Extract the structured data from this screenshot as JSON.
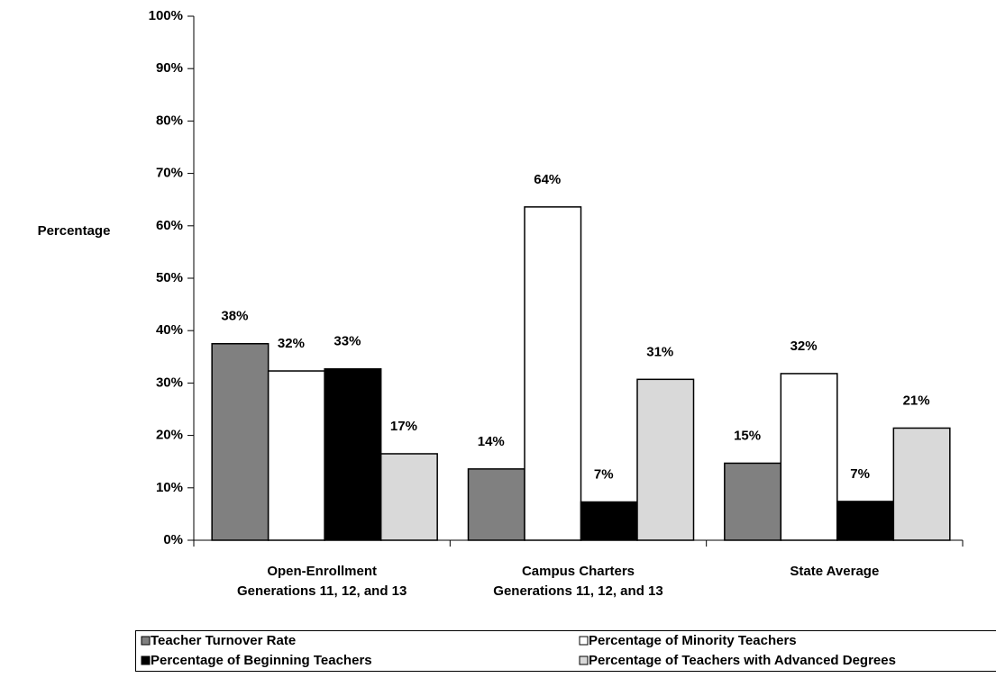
{
  "chart_data": {
    "type": "bar",
    "y_label": "Percentage",
    "categories": [
      "Open-Enrollment\nGenerations 11, 12, and 13",
      "Campus Charters\nGenerations 11, 12, and 13",
      "State Average"
    ],
    "series": [
      {
        "name": "Teacher Turnover Rate",
        "color": "#808080",
        "values": [
          37.5,
          13.6,
          14.7
        ],
        "value_labels": [
          "38%",
          "14%",
          "15%"
        ]
      },
      {
        "name": "Percentage of Minority Teachers",
        "color": "#ffffff",
        "values": [
          32.3,
          63.6,
          31.8
        ],
        "value_labels": [
          "32%",
          "64%",
          "32%"
        ]
      },
      {
        "name": "Percentage of Beginning Teachers",
        "color": "#000000",
        "values": [
          32.7,
          7.3,
          7.4
        ],
        "value_labels": [
          "33%",
          "7%",
          "7%"
        ]
      },
      {
        "name": "Percentage of Teachers with Advanced Degrees",
        "color": "#d9d9d9",
        "values": [
          16.5,
          30.7,
          21.4
        ],
        "value_labels": [
          "17%",
          "31%",
          "21%"
        ]
      }
    ],
    "ylim": [
      0,
      100
    ],
    "yticks": [
      {
        "value": 0,
        "label": "0%"
      },
      {
        "value": 10,
        "label": "10%"
      },
      {
        "value": 20,
        "label": "20%"
      },
      {
        "value": 30,
        "label": "30%"
      },
      {
        "value": 40,
        "label": "40%"
      },
      {
        "value": 50,
        "label": "50%"
      },
      {
        "value": 60,
        "label": "60%"
      },
      {
        "value": 70,
        "label": "70%"
      },
      {
        "value": 80,
        "label": "80%"
      },
      {
        "value": 90,
        "label": "90%"
      },
      {
        "value": 100,
        "label": "100%"
      }
    ],
    "grid": false,
    "legend": "bottom"
  }
}
